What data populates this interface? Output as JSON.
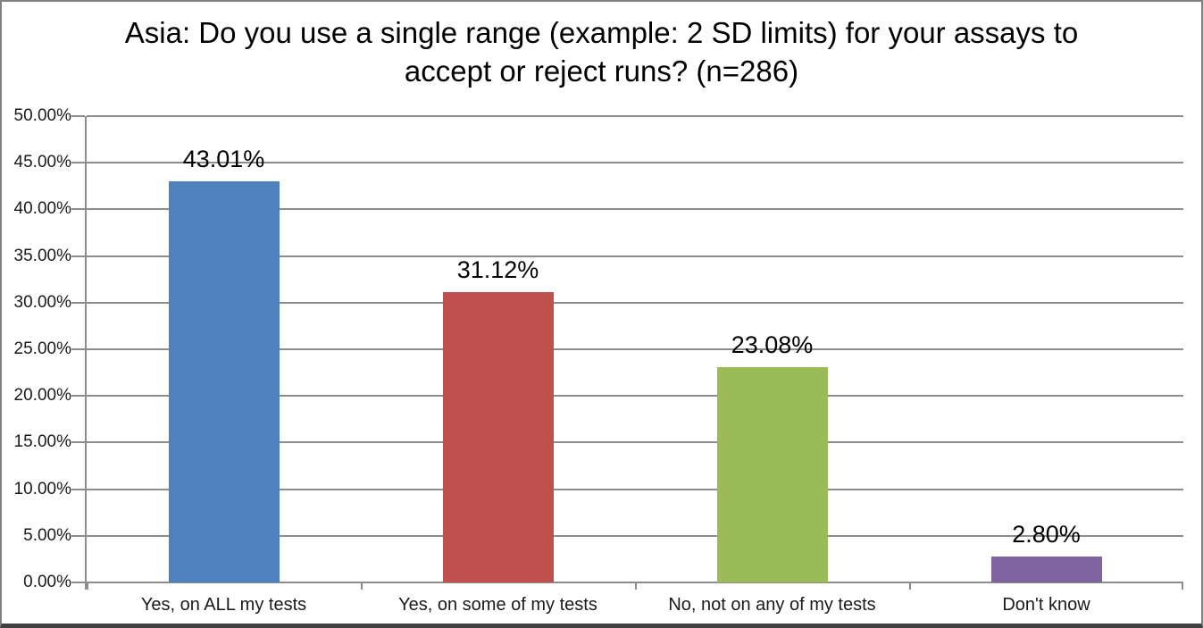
{
  "chart_data": {
    "type": "bar",
    "title": "Asia: Do you use a single range (example: 2 SD limits) for your assays to accept or reject runs? (n=286)",
    "categories": [
      "Yes, on ALL my tests",
      "Yes, on some of my tests",
      "No, not on any of my tests",
      "Don't know"
    ],
    "values": [
      43.01,
      31.12,
      23.08,
      2.8
    ],
    "value_labels": [
      "43.01%",
      "31.12%",
      "23.08%",
      "2.80%"
    ],
    "bar_colors": [
      "#4F81BD",
      "#C0504D",
      "#9BBB59",
      "#8064A2"
    ],
    "xlabel": "",
    "ylabel": "",
    "ylim": [
      0,
      50
    ],
    "ytick_step": 5,
    "ytick_labels": [
      "0.00%",
      "5.00%",
      "10.00%",
      "15.00%",
      "20.00%",
      "25.00%",
      "30.00%",
      "35.00%",
      "40.00%",
      "45.00%",
      "50.00%"
    ],
    "grid": true,
    "legend": "none",
    "colors": {
      "grid": "#8C8C8C",
      "axis": "#8C8C8C",
      "text": "#000000",
      "background": "#FFFFFF",
      "border": "#808080",
      "border_bottom": "#404040"
    }
  }
}
